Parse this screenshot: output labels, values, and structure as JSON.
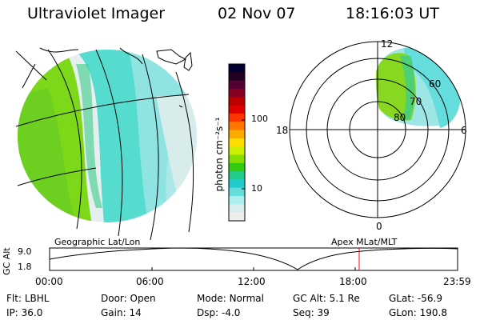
{
  "header": {
    "title": "Ultraviolet Imager",
    "date": "02 Nov 07",
    "time": "18:16:03 UT"
  },
  "colorbar": {
    "unit_label": "photon cm⁻²s⁻¹",
    "ticks": [
      "100",
      "10"
    ],
    "colors": [
      "#000033",
      "#220022",
      "#550033",
      "#880022",
      "#bb0000",
      "#dd0000",
      "#ff3300",
      "#ff7700",
      "#ffaa00",
      "#ffdd00",
      "#ccee00",
      "#88dd00",
      "#33cc11",
      "#22cc88",
      "#22cccc",
      "#66dddd",
      "#aaeeee",
      "#d8eeee",
      "#eeeeee"
    ]
  },
  "polar_plot": {
    "mlt_labels": {
      "top": "12",
      "left": "18",
      "right": "6",
      "bottom": "0"
    },
    "lat_labels": [
      "60",
      "70",
      "80"
    ]
  },
  "altitude_plot": {
    "left_caption": "Geographic Lat/Lon",
    "right_caption": "Apex MLat/MLT",
    "y_axis_label": "GC Alt",
    "y_ticks": [
      "9.0",
      "1.8"
    ],
    "x_ticks": [
      "00:00",
      "06:00",
      "12:00",
      "18:00",
      "23:59"
    ],
    "marker_time": "18:16",
    "marker_color": "#ff0000"
  },
  "status": {
    "row1": [
      {
        "label": "Flt:",
        "value": "LBHL"
      },
      {
        "label": "Door:",
        "value": "Open"
      },
      {
        "label": "Mode:",
        "value": "Normal"
      },
      {
        "label": "GC Alt:",
        "value": "5.1 Re"
      },
      {
        "label": "GLat:",
        "value": "-56.9"
      }
    ],
    "row2": [
      {
        "label": "IP:",
        "value": "36.0"
      },
      {
        "label": "Gain:",
        "value": "14"
      },
      {
        "label": "Dsp:",
        "value": "-4.0"
      },
      {
        "label": "Seq:",
        "value": "39"
      },
      {
        "label": "GLon:",
        "value": "190.8"
      }
    ]
  }
}
